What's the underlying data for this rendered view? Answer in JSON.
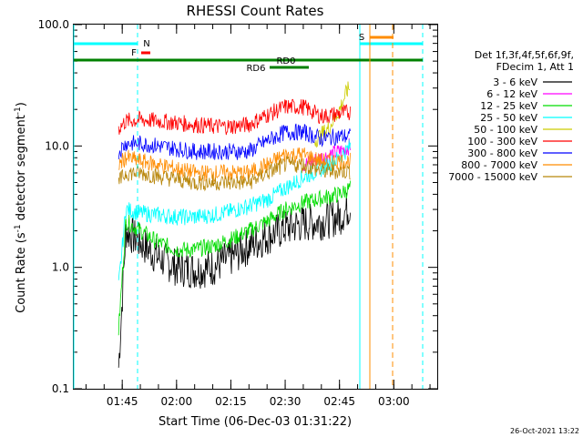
{
  "chart_data": {
    "type": "line",
    "title": "RHESSI Count Rates",
    "xlabel": "Start Time (06-Dec-03 01:31:22)",
    "ylabel_main": "Count Rate (s",
    "ylabel_sup1": "-1",
    "ylabel_mid": " detector segment",
    "ylabel_sup2": "-1",
    "ylabel_end": ")",
    "y_scale": "log",
    "ylim": [
      0.1,
      100.0
    ],
    "y_ticks": [
      "0.1",
      "1.0",
      "10.0",
      "100.0"
    ],
    "x_ticks": [
      "01:45",
      "02:00",
      "02:15",
      "02:30",
      "02:45",
      "03:00"
    ],
    "x_range_minutes": [
      "01:31:22",
      "03:12"
    ],
    "legend_header": [
      "Det 1f,3f,4f,5f,6f,9f,",
      "FDecim 1, Att 1"
    ],
    "series": [
      {
        "name": "3 - 6 keV",
        "color": "#000000",
        "x": [
          "01:44",
          "01:46",
          "01:50",
          "01:55",
          "02:00",
          "02:05",
          "02:10",
          "02:15",
          "02:20",
          "02:25",
          "02:30",
          "02:35",
          "02:40",
          "02:45",
          "02:48"
        ],
        "y": [
          0.15,
          2.0,
          1.6,
          1.2,
          1.0,
          0.95,
          1.0,
          1.2,
          1.5,
          1.8,
          2.1,
          2.3,
          2.4,
          2.6,
          3.2
        ]
      },
      {
        "name": "6 - 12 keV",
        "color": "#ff00ff",
        "x": [
          "02:35",
          "02:40",
          "02:45",
          "02:48"
        ],
        "y": [
          7.0,
          8.0,
          9.0,
          10.0
        ]
      },
      {
        "name": "12 - 25 keV",
        "color": "#00dd00",
        "x": [
          "01:44",
          "01:46",
          "01:50",
          "01:55",
          "02:00",
          "02:05",
          "02:10",
          "02:15",
          "02:20",
          "02:25",
          "02:30",
          "02:35",
          "02:40",
          "02:45",
          "02:48"
        ],
        "y": [
          0.3,
          2.4,
          2.0,
          1.6,
          1.4,
          1.4,
          1.5,
          1.7,
          2.0,
          2.4,
          3.0,
          3.4,
          3.7,
          4.0,
          4.5
        ]
      },
      {
        "name": "25 - 50 keV",
        "color": "#00ffff",
        "x": [
          "01:44",
          "01:46",
          "01:50",
          "01:55",
          "02:00",
          "02:05",
          "02:10",
          "02:15",
          "02:20",
          "02:25",
          "02:30",
          "02:35",
          "02:40",
          "02:45",
          "02:48"
        ],
        "y": [
          0.7,
          3.0,
          2.8,
          2.7,
          2.6,
          2.6,
          2.7,
          2.9,
          3.2,
          3.6,
          4.5,
          5.5,
          6.5,
          8.0,
          10.0
        ]
      },
      {
        "name": "50 - 100 keV",
        "color": "#cccc00",
        "x": [
          "02:38",
          "02:42",
          "02:45",
          "02:47",
          "02:48"
        ],
        "y": [
          11.0,
          14.0,
          20.0,
          28.0,
          31.0
        ]
      },
      {
        "name": "100 - 300 keV",
        "color": "#ff0000",
        "x": [
          "01:44",
          "01:46",
          "01:50",
          "01:55",
          "02:00",
          "02:05",
          "02:10",
          "02:15",
          "02:20",
          "02:25",
          "02:30",
          "02:35",
          "02:40",
          "02:45",
          "02:48"
        ],
        "y": [
          14.0,
          16.0,
          16.5,
          16.0,
          15.5,
          15.0,
          14.5,
          14.5,
          15.0,
          18.0,
          21.0,
          21.0,
          17.5,
          18.5,
          19.0
        ]
      },
      {
        "name": "300 - 800 keV",
        "color": "#0000ff",
        "x": [
          "01:44",
          "01:46",
          "01:50",
          "01:55",
          "02:00",
          "02:05",
          "02:10",
          "02:15",
          "02:20",
          "02:25",
          "02:30",
          "02:35",
          "02:40",
          "02:45",
          "02:48"
        ],
        "y": [
          9.0,
          10.5,
          10.5,
          10.0,
          9.5,
          9.0,
          9.0,
          9.0,
          9.0,
          11.0,
          13.0,
          13.0,
          11.5,
          12.0,
          12.0
        ]
      },
      {
        "name": "800 - 7000 keV",
        "color": "#ff8c00",
        "x": [
          "01:44",
          "01:46",
          "01:50",
          "01:55",
          "02:00",
          "02:05",
          "02:10",
          "02:15",
          "02:20",
          "02:25",
          "02:30",
          "02:35",
          "02:40",
          "02:45",
          "02:48"
        ],
        "y": [
          7.0,
          8.0,
          7.5,
          7.0,
          6.5,
          6.0,
          6.0,
          6.0,
          6.0,
          7.0,
          8.5,
          8.5,
          7.5,
          7.5,
          7.5
        ]
      },
      {
        "name": "7000 - 15000 keV",
        "color": "#b8860b",
        "x": [
          "01:44",
          "01:46",
          "01:50",
          "01:55",
          "02:00",
          "02:05",
          "02:10",
          "02:15",
          "02:20",
          "02:25",
          "02:30",
          "02:35",
          "02:40",
          "02:45",
          "02:48"
        ],
        "y": [
          5.0,
          6.0,
          6.0,
          5.6,
          5.3,
          5.0,
          5.0,
          5.0,
          5.0,
          6.0,
          7.0,
          7.0,
          6.2,
          6.2,
          6.2
        ]
      }
    ],
    "flag_labels": {
      "n": "N",
      "f": "F",
      "rd0": "RD0",
      "rd6": "RD6",
      "s": "S"
    },
    "timestamp": "26-Oct-2021 13:22",
    "colors": {
      "night": "#00ffff",
      "flare": "#ff0000",
      "decimation": "#008000",
      "saa": "#ff8c00",
      "axes": "#000000"
    }
  }
}
